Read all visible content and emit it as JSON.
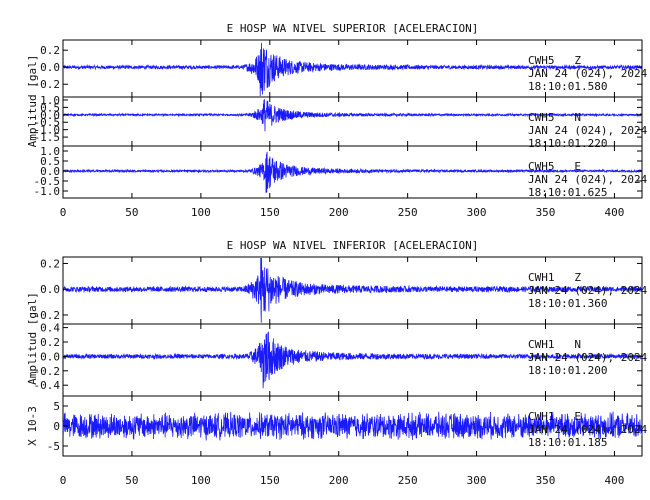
{
  "colors": {
    "trace": "#1a1aff",
    "axis": "#000000",
    "background": "#ffffff"
  },
  "chart_data": [
    {
      "type": "line",
      "title": "E HOSP WA NIVEL SUPERIOR [ACELERACION]",
      "ylabel": "Amplitud [gal]",
      "xlim": [
        0,
        420
      ],
      "xticks": [
        0,
        50,
        100,
        150,
        200,
        250,
        300,
        350,
        400
      ],
      "panels": [
        {
          "channel": "CWH5   Z",
          "date": "JAN 24 (024), 2024",
          "time": "18:10:01.580",
          "ylim": [
            -0.35,
            0.32
          ],
          "yticks": [
            "0.2",
            "0.0",
            "-0.2"
          ],
          "ytick_values": [
            0.2,
            0.0,
            -0.2
          ],
          "noise_amp": 0.02,
          "event_peak": 0.3,
          "event_time": 143
        },
        {
          "channel": "CWH5   N",
          "date": "JAN 24 (024), 2024",
          "time": "18:10:01.220",
          "ylim": [
            -2.1,
            1.2
          ],
          "yticks": [
            "1.0",
            "0.5",
            "0.0",
            "-0.5",
            "-1.0",
            "-1.5"
          ],
          "ytick_values": [
            1.0,
            0.5,
            0.0,
            -0.5,
            -1.0,
            -1.5
          ],
          "noise_amp": 0.06,
          "event_peak": 1.0,
          "event_time": 145
        },
        {
          "channel": "CWH5   E",
          "date": "JAN 24 (024), 2024",
          "time": "18:10:01.625",
          "ylim": [
            -1.35,
            1.25
          ],
          "yticks": [
            "1.0",
            "0.5",
            "0.0",
            "-0.5",
            "-1.0"
          ],
          "ytick_values": [
            1.0,
            0.5,
            0.0,
            -0.5,
            -1.0
          ],
          "noise_amp": 0.05,
          "event_peak": 0.9,
          "event_time": 147
        }
      ]
    },
    {
      "type": "line",
      "title": "E HOSP WA NIVEL INFERIOR [ACELERACION]",
      "ylabel": "Amplitud [gal]",
      "xlim": [
        0,
        420
      ],
      "xticks": [
        0,
        50,
        100,
        150,
        200,
        250,
        300,
        350,
        400
      ],
      "panels": [
        {
          "channel": "CWH1   Z",
          "date": "JAN 24 (024), 2024",
          "time": "18:10:01.360",
          "ylim": [
            -0.27,
            0.25
          ],
          "yticks": [
            "0.2",
            "0.0",
            "-0.2"
          ],
          "ytick_values": [
            0.2,
            0.0,
            -0.2
          ],
          "noise_amp": 0.02,
          "event_peak": 0.22,
          "event_time": 143
        },
        {
          "channel": "CWH1   N",
          "date": "JAN 24 (024), 2024",
          "time": "18:10:01.200",
          "ylim": [
            -0.55,
            0.45
          ],
          "yticks": [
            "0.4",
            "0.2",
            "0.0",
            "-0.2",
            "-0.4"
          ],
          "ytick_values": [
            0.4,
            0.2,
            0.0,
            -0.2,
            -0.4
          ],
          "noise_amp": 0.03,
          "event_peak": 0.38,
          "event_time": 145
        },
        {
          "channel": "CWH1   E",
          "date": "JAN 24 (024), 2024",
          "time": "18:10:01.185",
          "ylabel": "X 10-3",
          "ylim": [
            -7.5,
            7.5
          ],
          "yticks": [
            "5",
            "0",
            "-5"
          ],
          "ytick_values": [
            5,
            0,
            -5
          ],
          "noise_amp": 3.2,
          "event_peak": 0,
          "event_time": 145
        }
      ]
    }
  ]
}
